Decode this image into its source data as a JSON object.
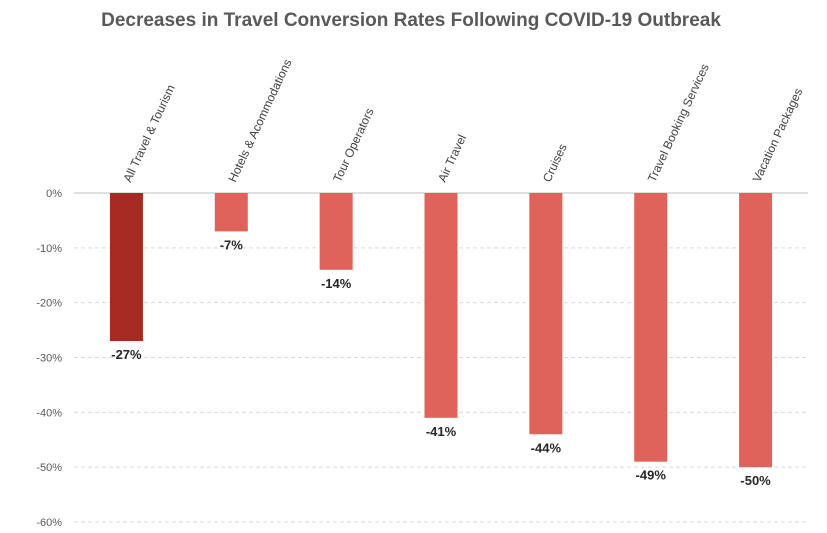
{
  "chart_data": {
    "type": "bar",
    "title": "Decreases in Travel Conversion Rates Following COVID-19 Outbreak",
    "categories": [
      "All Travel & Tourism",
      "Hotels & Acommodations",
      "Tour Operators",
      "Air Travel",
      "Cruises",
      "Travel Booking Services",
      "Vacation Packages"
    ],
    "values": [
      -27,
      -7,
      -14,
      -41,
      -44,
      -49,
      -50
    ],
    "data_labels": [
      "-27%",
      "-7%",
      "-14%",
      "-41%",
      "-44%",
      "-49%",
      "-50%"
    ],
    "yticks": [
      0,
      -10,
      -20,
      -30,
      -40,
      -50,
      -60
    ],
    "ytick_labels": [
      "0%",
      "-10%",
      "-20%",
      "-30%",
      "-40%",
      "-50%",
      "-60%"
    ],
    "ylim": [
      -60,
      0
    ],
    "xlabel": "",
    "ylabel": "",
    "grid": true,
    "colors": {
      "highlight": "#a52a21",
      "bar": "#e0635b",
      "grid": "#d9d9d9",
      "axis": "#bfbfbf"
    }
  }
}
